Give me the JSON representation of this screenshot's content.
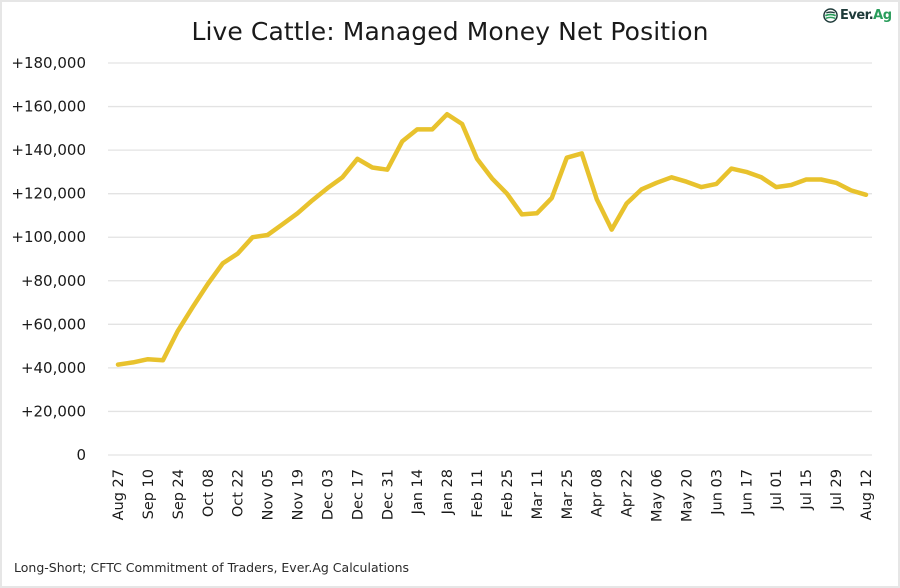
{
  "chart_data": {
    "type": "line",
    "title": "Live Cattle: Managed Money Net Position",
    "xlabel": "",
    "ylabel": "",
    "ylim": [
      0,
      180000
    ],
    "yticks": [
      0,
      20000,
      40000,
      60000,
      80000,
      100000,
      120000,
      140000,
      160000,
      180000
    ],
    "ytick_labels": [
      "0",
      "+20,000",
      "+40,000",
      "+60,000",
      "+80,000",
      "+100,000",
      "+120,000",
      "+140,000",
      "+160,000",
      "+180,000"
    ],
    "grid": "horizontal",
    "legend": "none",
    "x": [
      "Aug 27",
      "Sep 03",
      "Sep 10",
      "Sep 17",
      "Sep 24",
      "Oct 01",
      "Oct 08",
      "Oct 15",
      "Oct 22",
      "Oct 29",
      "Nov 05",
      "Nov 12",
      "Nov 19",
      "Nov 26",
      "Dec 03",
      "Dec 10",
      "Dec 17",
      "Dec 24",
      "Dec 31",
      "Jan 07",
      "Jan 14",
      "Jan 21",
      "Jan 28",
      "Feb 04",
      "Feb 11",
      "Feb 18",
      "Feb 25",
      "Mar 04",
      "Mar 11",
      "Mar 18",
      "Mar 25",
      "Apr 01",
      "Apr 08",
      "Apr 15",
      "Apr 22",
      "Apr 29",
      "May 06",
      "May 13",
      "May 20",
      "May 27",
      "Jun 03",
      "Jun 10",
      "Jun 17",
      "Jun 24",
      "Jul 01",
      "Jul 08",
      "Jul 15",
      "Jul 22",
      "Jul 29",
      "Aug 05",
      "Aug 12"
    ],
    "xtick_labels": [
      "Aug 27",
      "Sep 10",
      "Sep 24",
      "Oct 08",
      "Oct 22",
      "Nov 05",
      "Nov 19",
      "Dec 03",
      "Dec 17",
      "Dec 31",
      "Jan 14",
      "Jan 28",
      "Feb 11",
      "Feb 25",
      "Mar 11",
      "Mar 25",
      "Apr 08",
      "Apr 22",
      "May 06",
      "May 20",
      "Jun 03",
      "Jun 17",
      "Jul 01",
      "Jul 15",
      "Jul 29",
      "Aug 12"
    ],
    "series": [
      {
        "name": "Managed Money Net Position",
        "color": "#e8c22d",
        "values": [
          41500,
          42500,
          44000,
          43500,
          57000,
          68000,
          78500,
          88000,
          92500,
          100000,
          101000,
          106000,
          111000,
          117000,
          122500,
          127500,
          136000,
          132000,
          131000,
          144000,
          149500,
          149500,
          156500,
          152000,
          136000,
          127000,
          120000,
          110500,
          111000,
          118000,
          136500,
          138500,
          117500,
          103500,
          115500,
          122000,
          125000,
          127500,
          125500,
          123000,
          124500,
          131500,
          130000,
          127500,
          123000,
          124000,
          126500,
          126500,
          125000,
          121500,
          119500
        ]
      }
    ]
  },
  "logo": {
    "brand_primary": "Ever.",
    "brand_secondary": "Ag",
    "icon": "ever-ag-logo-icon"
  },
  "footer": {
    "source": "Long-Short; CFTC Commitment of Traders, Ever.Ag Calculations"
  },
  "colors": {
    "line": "#e8c22d",
    "grid": "#e3e3e3",
    "text": "#1a1a1a",
    "brand_dark": "#1f3b3a",
    "brand_green": "#2a9d5c"
  }
}
